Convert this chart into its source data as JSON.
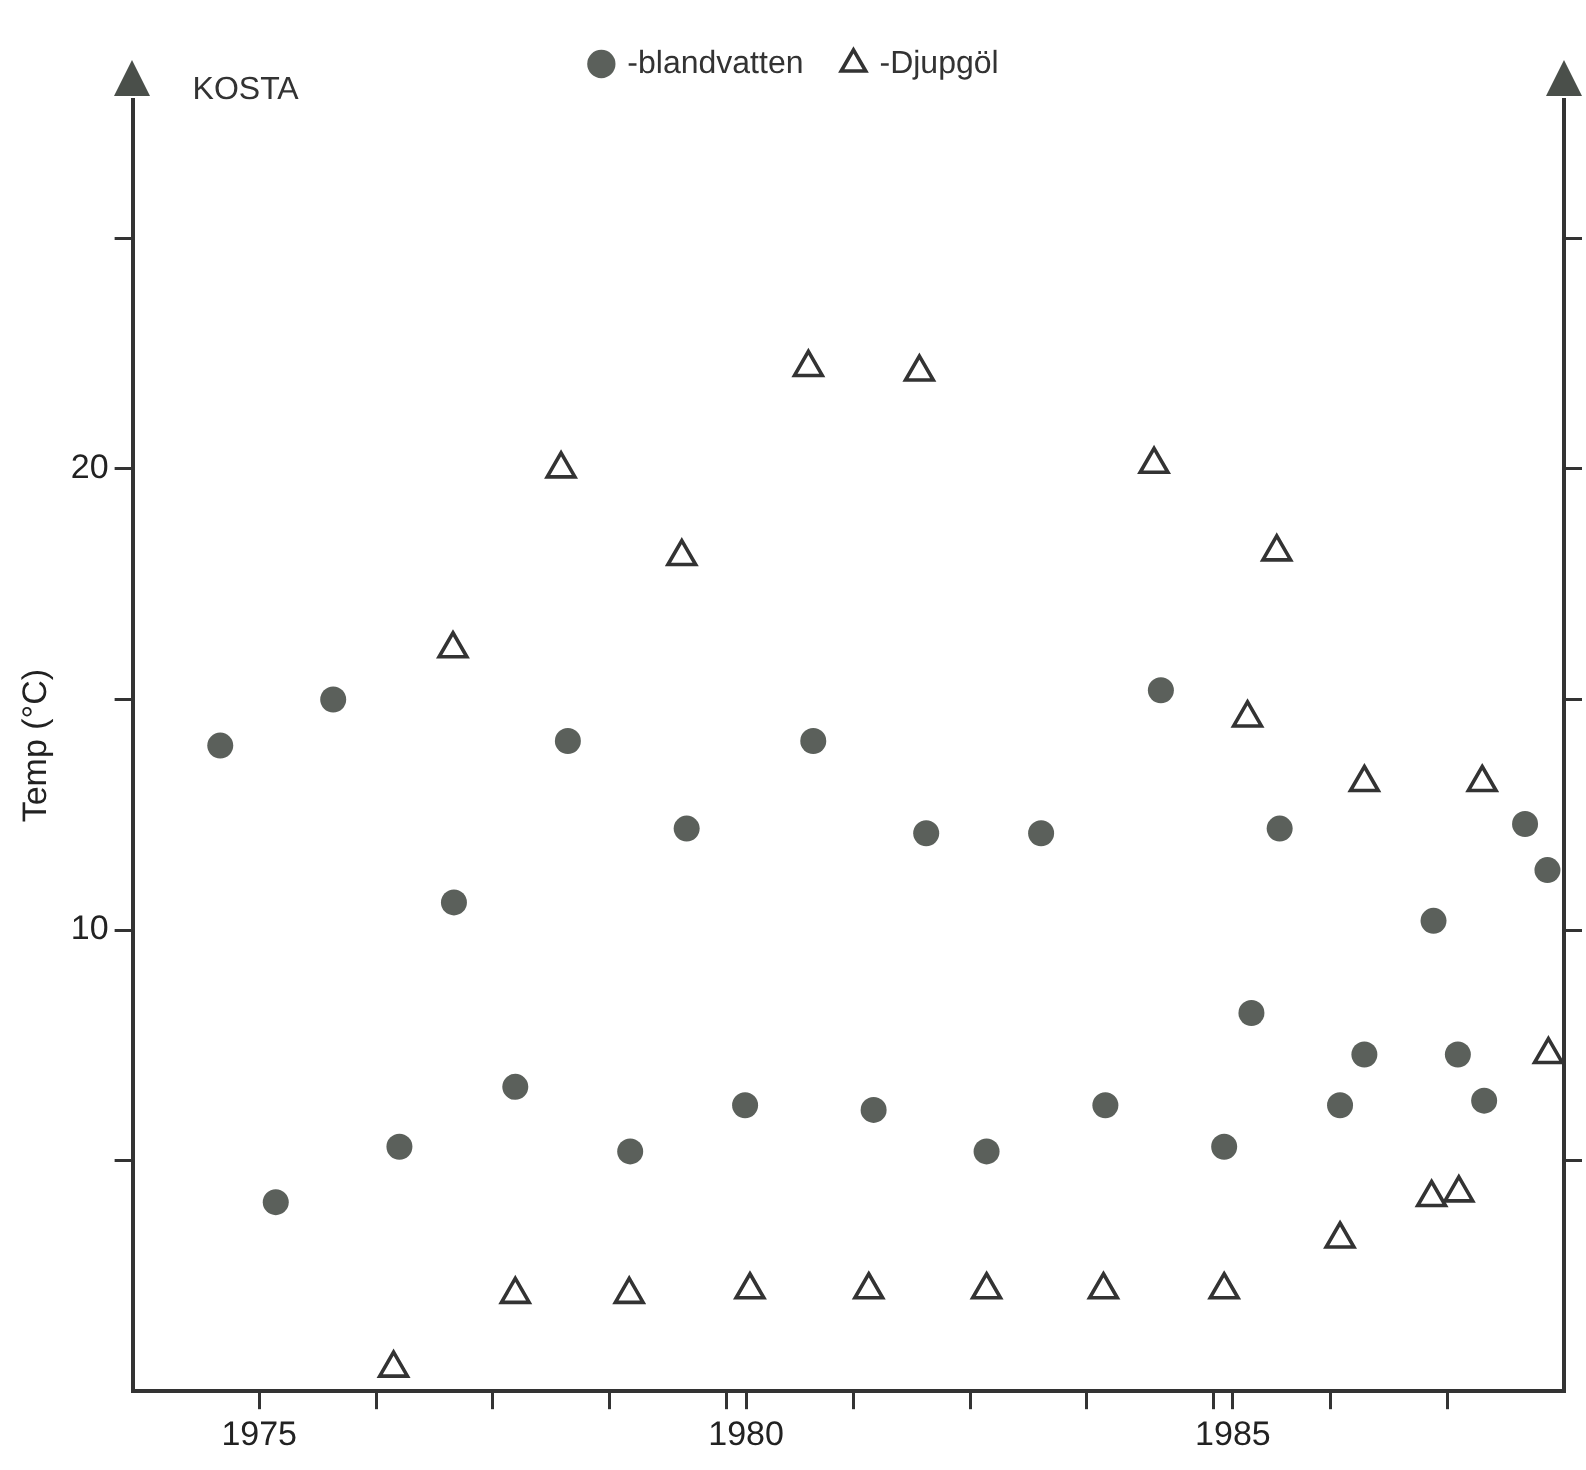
{
  "chart_data": {
    "type": "scatter",
    "title": "KOSTA",
    "ylabel": "Temp (°C)",
    "xlim": [
      1973.7,
      1988.4
    ],
    "xticks": [
      1975,
      {
        "value": 1976.2,
        "label": null
      },
      {
        "value": 1977.4,
        "label": null
      },
      {
        "value": 1978.6,
        "label": null
      },
      {
        "value": 1979.8,
        "label": null
      },
      1980,
      {
        "value": 1981.1,
        "label": null
      },
      {
        "value": 1982.3,
        "label": null
      },
      {
        "value": 1983.5,
        "label": null
      },
      {
        "value": 1984.8,
        "label": null
      },
      1985,
      {
        "value": 1986.0,
        "label": null
      },
      {
        "value": 1987.2,
        "label": null
      }
    ],
    "ylim": [
      0,
      28
    ],
    "yticks": [
      {
        "value": 5,
        "label": null
      },
      10,
      {
        "value": 15,
        "label": null
      },
      20,
      {
        "value": 25,
        "label": null
      }
    ],
    "grid": false,
    "legend": "top",
    "tick_labels": "xy",
    "series": [
      {
        "name": "-blandvatten",
        "color": "#5b605b",
        "marker": "circle",
        "x": [
          1974.6,
          1975.17,
          1975.76,
          1976.44,
          1977.0,
          1977.63,
          1978.17,
          1978.81,
          1979.39,
          1979.99,
          1980.69,
          1981.31,
          1981.85,
          1982.47,
          1983.03,
          1983.69,
          1984.26,
          1984.91,
          1985.19,
          1985.48,
          1986.1,
          1986.35,
          1987.06,
          1987.31,
          1987.58,
          1988.0,
          1988.23
        ],
        "values": [
          14.0,
          4.1,
          15.0,
          5.3,
          10.6,
          6.6,
          14.1,
          5.2,
          12.2,
          6.2,
          14.1,
          6.1,
          12.1,
          5.2,
          12.1,
          6.2,
          15.2,
          5.3,
          8.2,
          12.2,
          6.2,
          7.3,
          10.2,
          7.3,
          6.3,
          12.3,
          11.3
        ]
      },
      {
        "name": "-Djupgöl",
        "color": "#333333",
        "marker": "triangle",
        "x": [
          1976.38,
          1976.99,
          1977.63,
          1978.1,
          1978.8,
          1979.34,
          1980.04,
          1980.64,
          1981.26,
          1981.78,
          1982.47,
          1983.67,
          1984.19,
          1984.91,
          1985.15,
          1985.45,
          1986.1,
          1986.35,
          1987.04,
          1987.32,
          1987.56,
          1988.24
        ],
        "values": [
          0.5,
          16.1,
          2.1,
          20.0,
          2.1,
          18.1,
          2.2,
          22.2,
          2.2,
          22.1,
          2.2,
          2.2,
          20.1,
          2.2,
          14.6,
          18.2,
          3.3,
          13.2,
          4.2,
          4.3,
          13.2,
          7.3
        ]
      }
    ]
  }
}
